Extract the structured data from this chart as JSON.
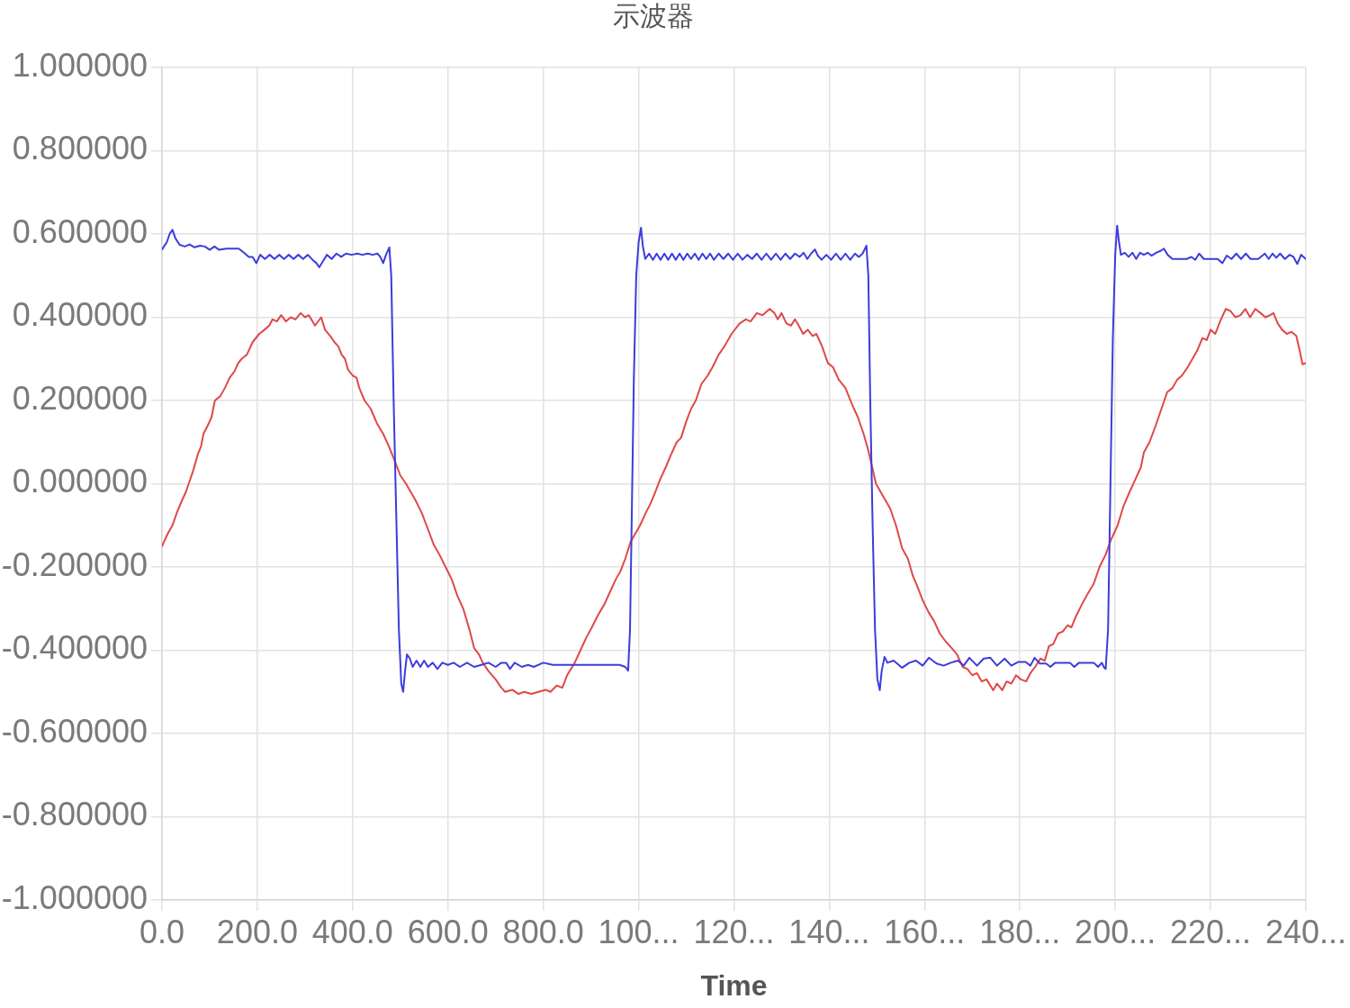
{
  "chart_data": {
    "type": "line",
    "title": "示波器",
    "xlabel": "Time",
    "xlim": [
      0,
      2400
    ],
    "xticks": [
      {
        "value": 0,
        "label": "0.0"
      },
      {
        "value": 200,
        "label": "200.0"
      },
      {
        "value": 400,
        "label": "400.0"
      },
      {
        "value": 600,
        "label": "600.0"
      },
      {
        "value": 800,
        "label": "800.0"
      },
      {
        "value": 1000,
        "label": "100..."
      },
      {
        "value": 1200,
        "label": "120..."
      },
      {
        "value": 1400,
        "label": "140..."
      },
      {
        "value": 1600,
        "label": "160..."
      },
      {
        "value": 1800,
        "label": "180..."
      },
      {
        "value": 2000,
        "label": "200..."
      },
      {
        "value": 2200,
        "label": "220..."
      },
      {
        "value": 2400,
        "label": "240..."
      }
    ],
    "ylim": [
      -1,
      1
    ],
    "yticks": [
      {
        "value": -1,
        "label": "-1.000000"
      },
      {
        "value": -0.8,
        "label": "-0.800000"
      },
      {
        "value": -0.6,
        "label": "-0.600000"
      },
      {
        "value": -0.4,
        "label": "-0.400000"
      },
      {
        "value": -0.2,
        "label": "-0.200000"
      },
      {
        "value": 0,
        "label": "0.000000"
      },
      {
        "value": 0.2,
        "label": "0.200000"
      },
      {
        "value": 0.4,
        "label": "0.400000"
      },
      {
        "value": 0.6,
        "label": "0.600000"
      },
      {
        "value": 0.8,
        "label": "0.800000"
      },
      {
        "value": 1,
        "label": "1.000000"
      }
    ],
    "grid": true,
    "series": [
      {
        "color": "#e04848",
        "x": [
          0,
          12,
          22,
          31,
          42,
          50,
          56,
          65,
          75,
          82,
          87,
          96,
          104,
          111,
          122,
          132,
          142,
          152,
          160,
          167,
          178,
          190,
          204,
          215,
          225,
          232,
          241,
          250,
          260,
          270,
          280,
          291,
          300,
          308,
          316,
          321,
          334,
          342,
          353,
          362,
          370,
          377,
          384,
          390,
          400,
          408,
          414,
          425,
          438,
          451,
          464,
          476,
          490,
          500,
          512,
          522,
          532,
          545,
          555,
          570,
          582,
          595,
          608,
          620,
          632,
          645,
          655,
          665,
          673,
          685,
          700,
          712,
          720,
          735,
          748,
          760,
          775,
          790,
          805,
          815,
          828,
          840,
          850,
          858,
          866,
          878,
          890,
          902,
          915,
          928,
          940,
          952,
          962,
          972,
          983,
          993,
          1003,
          1015,
          1024,
          1035,
          1045,
          1057,
          1068,
          1080,
          1089,
          1100,
          1110,
          1120,
          1132,
          1145,
          1155,
          1168,
          1180,
          1195,
          1212,
          1225,
          1235,
          1248,
          1260,
          1275,
          1285,
          1292,
          1300,
          1310,
          1320,
          1328,
          1336,
          1345,
          1355,
          1365,
          1373,
          1385,
          1397,
          1408,
          1420,
          1434,
          1448,
          1460,
          1472,
          1482,
          1490,
          1498,
          1508,
          1518,
          1528,
          1540,
          1553,
          1565,
          1575,
          1586,
          1596,
          1609,
          1620,
          1632,
          1645,
          1657,
          1668,
          1680,
          1690,
          1700,
          1710,
          1720,
          1730,
          1744,
          1752,
          1763,
          1772,
          1782,
          1792,
          1802,
          1813,
          1822,
          1832,
          1843,
          1852,
          1861,
          1870,
          1880,
          1890,
          1900,
          1908,
          1917,
          1930,
          1942,
          1955,
          1967,
          1980,
          1991,
          2005,
          2017,
          2030,
          2042,
          2054,
          2060,
          2072,
          2085,
          2097,
          2109,
          2120,
          2130,
          2140,
          2152,
          2162,
          2172,
          2183,
          2192,
          2200,
          2210,
          2220,
          2232,
          2242,
          2252,
          2263,
          2273,
          2283,
          2294,
          2305,
          2315,
          2325,
          2332,
          2341,
          2350,
          2360,
          2370,
          2380,
          2387,
          2393,
          2400
        ],
        "values": [
          -0.15,
          -0.12,
          -0.1,
          -0.07,
          -0.04,
          -0.02,
          0.0,
          0.03,
          0.07,
          0.09,
          0.12,
          0.14,
          0.16,
          0.2,
          0.21,
          0.23,
          0.255,
          0.27,
          0.29,
          0.3,
          0.31,
          0.34,
          0.36,
          0.37,
          0.38,
          0.395,
          0.39,
          0.405,
          0.39,
          0.4,
          0.395,
          0.41,
          0.4,
          0.405,
          0.39,
          0.38,
          0.4,
          0.37,
          0.355,
          0.34,
          0.33,
          0.31,
          0.3,
          0.275,
          0.26,
          0.255,
          0.23,
          0.2,
          0.18,
          0.145,
          0.12,
          0.09,
          0.05,
          0.02,
          0.0,
          -0.02,
          -0.04,
          -0.07,
          -0.1,
          -0.146,
          -0.17,
          -0.2,
          -0.23,
          -0.27,
          -0.3,
          -0.35,
          -0.395,
          -0.41,
          -0.43,
          -0.45,
          -0.47,
          -0.49,
          -0.5,
          -0.495,
          -0.505,
          -0.5,
          -0.505,
          -0.5,
          -0.495,
          -0.5,
          -0.485,
          -0.49,
          -0.46,
          -0.445,
          -0.43,
          -0.4,
          -0.37,
          -0.345,
          -0.315,
          -0.29,
          -0.26,
          -0.23,
          -0.21,
          -0.18,
          -0.14,
          -0.12,
          -0.1,
          -0.07,
          -0.05,
          -0.02,
          0.01,
          0.04,
          0.07,
          0.1,
          0.11,
          0.15,
          0.18,
          0.2,
          0.24,
          0.26,
          0.28,
          0.31,
          0.33,
          0.36,
          0.385,
          0.395,
          0.39,
          0.41,
          0.405,
          0.42,
          0.41,
          0.395,
          0.41,
          0.385,
          0.38,
          0.395,
          0.38,
          0.36,
          0.37,
          0.355,
          0.36,
          0.33,
          0.29,
          0.28,
          0.25,
          0.23,
          0.19,
          0.16,
          0.12,
          0.08,
          0.04,
          0.0,
          -0.02,
          -0.04,
          -0.06,
          -0.1,
          -0.155,
          -0.18,
          -0.22,
          -0.25,
          -0.28,
          -0.31,
          -0.33,
          -0.36,
          -0.38,
          -0.395,
          -0.41,
          -0.44,
          -0.445,
          -0.46,
          -0.455,
          -0.475,
          -0.47,
          -0.496,
          -0.48,
          -0.496,
          -0.475,
          -0.48,
          -0.46,
          -0.47,
          -0.475,
          -0.455,
          -0.44,
          -0.42,
          -0.425,
          -0.39,
          -0.385,
          -0.36,
          -0.355,
          -0.34,
          -0.345,
          -0.32,
          -0.29,
          -0.265,
          -0.24,
          -0.2,
          -0.17,
          -0.135,
          -0.1,
          -0.055,
          -0.02,
          0.01,
          0.04,
          0.075,
          0.1,
          0.14,
          0.18,
          0.22,
          0.23,
          0.25,
          0.26,
          0.28,
          0.3,
          0.32,
          0.35,
          0.345,
          0.37,
          0.36,
          0.39,
          0.42,
          0.415,
          0.4,
          0.405,
          0.42,
          0.4,
          0.42,
          0.41,
          0.4,
          0.405,
          0.41,
          0.385,
          0.37,
          0.36,
          0.365,
          0.355,
          0.32,
          0.287,
          0.29
        ]
      },
      {
        "color": "#3c3cdc",
        "x": [
          0,
          10,
          16,
          22,
          28,
          37,
          48,
          58,
          68,
          80,
          90,
          100,
          110,
          120,
          135,
          150,
          161,
          172,
          182,
          190,
          198,
          206,
          216,
          226,
          236,
          246,
          256,
          266,
          276,
          286,
          296,
          306,
          316,
          324,
          330,
          338,
          346,
          356,
          366,
          376,
          386,
          398,
          410,
          420,
          432,
          442,
          452,
          458,
          464,
          470,
          477,
          481,
          486,
          492,
          497,
          502,
          506,
          510,
          514,
          520,
          526,
          534,
          542,
          550,
          558,
          568,
          578,
          588,
          600,
          612,
          625,
          640,
          655,
          670,
          685,
          700,
          712,
          722,
          730,
          740,
          755,
          768,
          780,
          800,
          820,
          850,
          880,
          910,
          940,
          960,
          972,
          978,
          982,
          986,
          990,
          995,
          1000,
          1005,
          1009,
          1014,
          1022,
          1030,
          1038,
          1046,
          1054,
          1062,
          1070,
          1078,
          1086,
          1094,
          1102,
          1110,
          1118,
          1126,
          1134,
          1142,
          1150,
          1158,
          1168,
          1178,
          1188,
          1198,
          1208,
          1218,
          1228,
          1238,
          1248,
          1258,
          1268,
          1278,
          1288,
          1298,
          1308,
          1318,
          1328,
          1338,
          1346,
          1354,
          1362,
          1370,
          1376,
          1384,
          1394,
          1404,
          1414,
          1424,
          1434,
          1444,
          1454,
          1462,
          1470,
          1478,
          1482,
          1486,
          1491,
          1496,
          1501,
          1506,
          1510,
          1516,
          1522,
          1535,
          1553,
          1568,
          1582,
          1596,
          1609,
          1625,
          1640,
          1655,
          1670,
          1682,
          1694,
          1710,
          1724,
          1738,
          1752,
          1768,
          1782,
          1797,
          1812,
          1822,
          1831,
          1842,
          1855,
          1864,
          1874,
          1890,
          1905,
          1914,
          1924,
          1940,
          1955,
          1964,
          1972,
          1976,
          1980,
          1985,
          1990,
          1995,
          2000,
          2004,
          2008,
          2012,
          2020,
          2028,
          2036,
          2044,
          2052,
          2060,
          2068,
          2076,
          2086,
          2096,
          2102,
          2110,
          2120,
          2135,
          2150,
          2160,
          2168,
          2176,
          2186,
          2200,
          2215,
          2225,
          2234,
          2244,
          2254,
          2264,
          2274,
          2284,
          2300,
          2314,
          2322,
          2330,
          2338,
          2346,
          2356,
          2366,
          2374,
          2382,
          2390,
          2395,
          2400
        ],
        "values": [
          0.563,
          0.58,
          0.6,
          0.61,
          0.59,
          0.574,
          0.57,
          0.575,
          0.568,
          0.572,
          0.57,
          0.562,
          0.57,
          0.562,
          0.565,
          0.565,
          0.565,
          0.555,
          0.545,
          0.545,
          0.53,
          0.55,
          0.54,
          0.55,
          0.54,
          0.55,
          0.54,
          0.55,
          0.54,
          0.55,
          0.54,
          0.55,
          0.538,
          0.53,
          0.52,
          0.535,
          0.55,
          0.54,
          0.553,
          0.545,
          0.553,
          0.55,
          0.553,
          0.55,
          0.553,
          0.55,
          0.553,
          0.545,
          0.53,
          0.55,
          0.568,
          0.5,
          0.2,
          -0.1,
          -0.35,
          -0.48,
          -0.5,
          -0.45,
          -0.41,
          -0.42,
          -0.44,
          -0.425,
          -0.44,
          -0.425,
          -0.44,
          -0.43,
          -0.445,
          -0.43,
          -0.435,
          -0.43,
          -0.44,
          -0.43,
          -0.44,
          -0.435,
          -0.43,
          -0.44,
          -0.43,
          -0.43,
          -0.445,
          -0.43,
          -0.44,
          -0.435,
          -0.44,
          -0.43,
          -0.435,
          -0.435,
          -0.435,
          -0.435,
          -0.435,
          -0.435,
          -0.44,
          -0.449,
          -0.35,
          -0.05,
          0.25,
          0.5,
          0.58,
          0.615,
          0.57,
          0.54,
          0.553,
          0.538,
          0.553,
          0.538,
          0.553,
          0.538,
          0.553,
          0.538,
          0.553,
          0.538,
          0.553,
          0.54,
          0.553,
          0.538,
          0.553,
          0.54,
          0.553,
          0.538,
          0.553,
          0.54,
          0.553,
          0.538,
          0.553,
          0.538,
          0.55,
          0.54,
          0.553,
          0.538,
          0.553,
          0.538,
          0.553,
          0.538,
          0.553,
          0.54,
          0.553,
          0.545,
          0.555,
          0.54,
          0.553,
          0.563,
          0.548,
          0.538,
          0.55,
          0.538,
          0.553,
          0.538,
          0.553,
          0.538,
          0.553,
          0.545,
          0.553,
          0.572,
          0.5,
          0.2,
          -0.1,
          -0.35,
          -0.47,
          -0.496,
          -0.45,
          -0.416,
          -0.43,
          -0.425,
          -0.442,
          -0.43,
          -0.425,
          -0.437,
          -0.418,
          -0.432,
          -0.437,
          -0.43,
          -0.425,
          -0.437,
          -0.418,
          -0.437,
          -0.42,
          -0.418,
          -0.437,
          -0.42,
          -0.437,
          -0.428,
          -0.428,
          -0.437,
          -0.418,
          -0.432,
          -0.432,
          -0.44,
          -0.43,
          -0.43,
          -0.43,
          -0.44,
          -0.43,
          -0.43,
          -0.43,
          -0.44,
          -0.43,
          -0.44,
          -0.445,
          -0.35,
          0.0,
          0.35,
          0.55,
          0.62,
          0.58,
          0.55,
          0.555,
          0.545,
          0.555,
          0.54,
          0.555,
          0.55,
          0.555,
          0.548,
          0.555,
          0.56,
          0.565,
          0.55,
          0.54,
          0.54,
          0.54,
          0.545,
          0.538,
          0.553,
          0.54,
          0.54,
          0.54,
          0.53,
          0.548,
          0.54,
          0.553,
          0.54,
          0.553,
          0.54,
          0.54,
          0.553,
          0.54,
          0.553,
          0.543,
          0.553,
          0.54,
          0.55,
          0.545,
          0.528,
          0.55,
          0.545,
          0.54
        ]
      }
    ]
  }
}
